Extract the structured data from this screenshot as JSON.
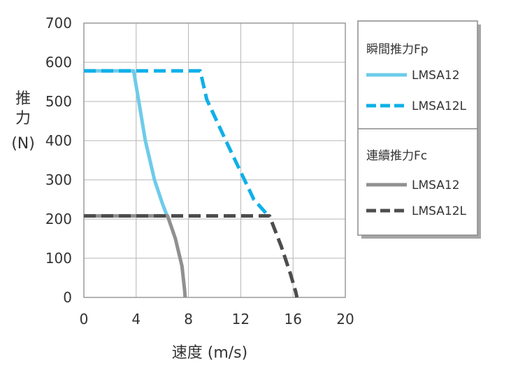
{
  "chart_data": {
    "type": "line",
    "xlabel": "速度 (m/s)",
    "ylabel": [
      "推",
      "力",
      "(N)"
    ],
    "xlim": [
      0,
      20
    ],
    "ylim": [
      0,
      700
    ],
    "xticks": [
      "0",
      "4",
      "8",
      "12",
      "16",
      "20"
    ],
    "yticks": [
      "0",
      "100",
      "200",
      "300",
      "400",
      "500",
      "600",
      "700"
    ],
    "grid": true,
    "legend_position": "right",
    "legend_groups": [
      {
        "title": "瞬間推力Fp",
        "entries": [
          "LMSA12",
          "LMSA12L"
        ]
      },
      {
        "title": "連續推力Fc",
        "entries": [
          "LMSA12",
          "LMSA12L"
        ]
      }
    ],
    "series": [
      {
        "name": "LMSA12",
        "group": "瞬間推力Fp",
        "color": "#6ecbea",
        "dash": "solid",
        "x": [
          0,
          3.8,
          4.1,
          4.7,
          5.4,
          6.0,
          6.4
        ],
        "y": [
          578,
          578,
          520,
          400,
          300,
          240,
          205
        ]
      },
      {
        "name": "LMSA12L",
        "group": "瞬間推力Fp",
        "color": "#0fb0e8",
        "dash": "dashed",
        "x": [
          0,
          8.9,
          9.4,
          11.0,
          13.0,
          14.2
        ],
        "y": [
          578,
          578,
          505,
          390,
          250,
          205
        ]
      },
      {
        "name": "LMSA12",
        "group": "連續推力Fc",
        "color": "#909090",
        "dash": "solid",
        "x": [
          0,
          6.4,
          7.0,
          7.5,
          7.7,
          7.75
        ],
        "y": [
          208,
          208,
          150,
          80,
          20,
          0
        ]
      },
      {
        "name": "LMSA12L",
        "group": "連續推力Fc",
        "color": "#4d4d4d",
        "dash": "dashed",
        "x": [
          0,
          14.2,
          15.1,
          15.8,
          16.2,
          16.3
        ],
        "y": [
          208,
          208,
          130,
          60,
          15,
          0
        ]
      }
    ]
  }
}
